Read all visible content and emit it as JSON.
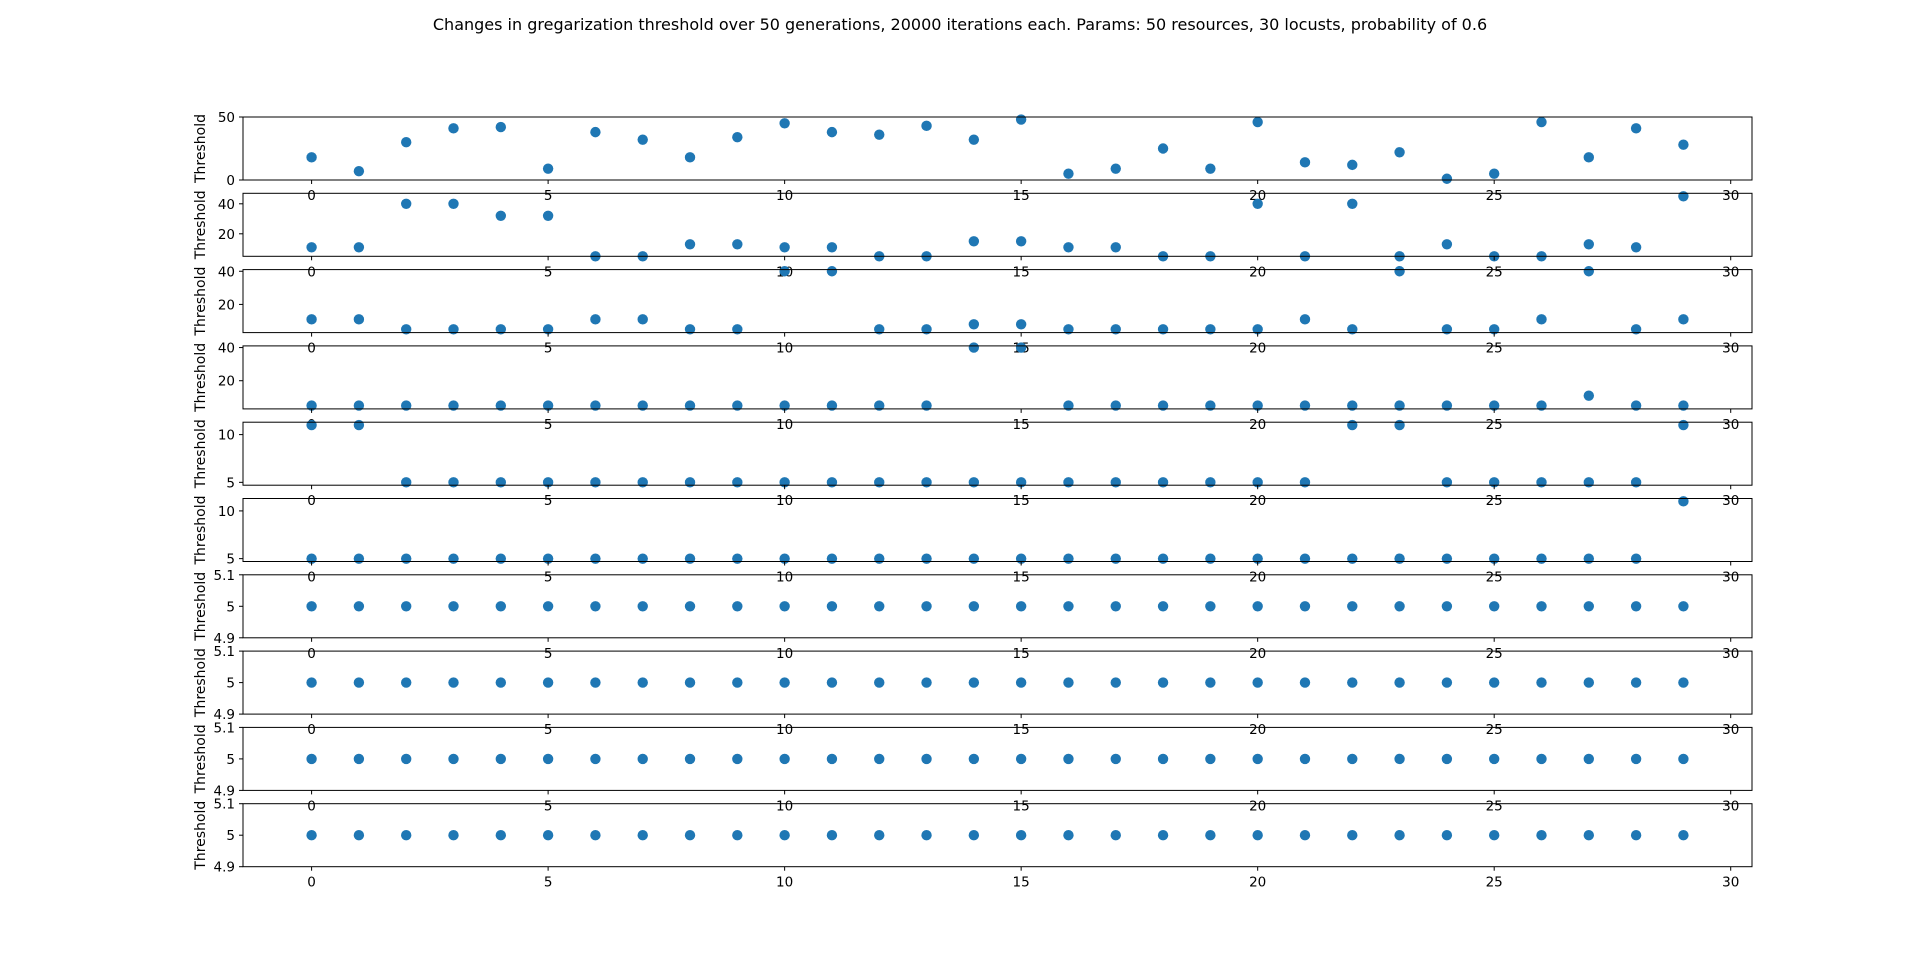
{
  "figure": {
    "title": "Changes in gregarization threshold over 50 generations, 20000 iterations each. Params: 50 resources, 30 locusts, probability of 0.6"
  },
  "chart_data": [
    {
      "type": "scatter",
      "ylabel": "Threshold",
      "xlim": [
        -1.45,
        30.45
      ],
      "ylim": [
        0,
        50
      ],
      "yticks": [
        0,
        50
      ],
      "xticks": [
        0,
        5,
        10,
        15,
        20,
        25,
        30
      ],
      "x": [
        0,
        1,
        2,
        3,
        4,
        5,
        6,
        7,
        8,
        9,
        10,
        11,
        12,
        13,
        14,
        15,
        16,
        17,
        18,
        19,
        20,
        21,
        22,
        23,
        24,
        25,
        26,
        27,
        28,
        29
      ],
      "y": [
        18,
        7,
        30,
        41,
        42,
        9,
        38,
        32,
        18,
        34,
        45,
        38,
        36,
        43,
        32,
        48,
        5,
        9,
        25,
        9,
        46,
        14,
        12,
        22,
        1,
        5,
        46,
        18,
        41,
        28
      ],
      "color": "#1f77b4"
    },
    {
      "type": "scatter",
      "ylabel": "Threshold",
      "xlim": [
        -1.45,
        30.45
      ],
      "ylim": [
        5,
        47
      ],
      "yticks": [
        20,
        40
      ],
      "xticks": [
        0,
        5,
        10,
        15,
        20,
        25,
        30
      ],
      "x": [
        0,
        1,
        2,
        3,
        4,
        5,
        6,
        7,
        8,
        9,
        10,
        11,
        12,
        13,
        14,
        15,
        16,
        17,
        18,
        19,
        20,
        21,
        22,
        23,
        24,
        25,
        26,
        27,
        28,
        29
      ],
      "y": [
        11,
        11,
        40,
        40,
        32,
        32,
        5,
        5,
        13,
        13,
        11,
        11,
        5,
        5,
        15,
        15,
        11,
        11,
        5,
        5,
        40,
        5,
        40,
        5,
        13,
        5,
        5,
        13,
        11,
        45
      ],
      "color": "#1f77b4"
    },
    {
      "type": "scatter",
      "ylabel": "Threshold",
      "xlim": [
        -1.45,
        30.45
      ],
      "ylim": [
        3,
        41
      ],
      "yticks": [
        20,
        40
      ],
      "xticks": [
        0,
        5,
        10,
        15,
        20,
        25,
        30
      ],
      "x": [
        0,
        1,
        2,
        3,
        4,
        5,
        6,
        7,
        8,
        9,
        10,
        11,
        12,
        13,
        14,
        15,
        16,
        17,
        18,
        19,
        20,
        21,
        22,
        23,
        24,
        25,
        26,
        27,
        28,
        29
      ],
      "y": [
        11,
        11,
        5,
        5,
        5,
        5,
        11,
        11,
        5,
        5,
        40,
        40,
        5,
        5,
        8,
        8,
        5,
        5,
        5,
        5,
        5,
        11,
        5,
        40,
        5,
        5,
        11,
        40,
        5,
        11
      ],
      "color": "#1f77b4"
    },
    {
      "type": "scatter",
      "ylabel": "Threshold",
      "xlim": [
        -1.45,
        30.45
      ],
      "ylim": [
        3,
        41
      ],
      "yticks": [
        20,
        40
      ],
      "xticks": [
        0,
        5,
        10,
        15,
        20,
        25,
        30
      ],
      "x": [
        0,
        1,
        2,
        3,
        4,
        5,
        6,
        7,
        8,
        9,
        10,
        11,
        12,
        13,
        14,
        15,
        16,
        17,
        18,
        19,
        20,
        21,
        22,
        23,
        24,
        25,
        26,
        27,
        28,
        29
      ],
      "y": [
        5,
        5,
        5,
        5,
        5,
        5,
        5,
        5,
        5,
        5,
        5,
        5,
        5,
        5,
        40,
        40,
        5,
        5,
        5,
        5,
        5,
        5,
        5,
        5,
        5,
        5,
        5,
        11,
        5,
        5
      ],
      "color": "#1f77b4"
    },
    {
      "type": "scatter",
      "ylabel": "Threshold",
      "xlim": [
        -1.45,
        30.45
      ],
      "ylim": [
        4.7,
        11.3
      ],
      "yticks": [
        5,
        10
      ],
      "xticks": [
        0,
        5,
        10,
        15,
        20,
        25,
        30
      ],
      "x": [
        0,
        1,
        2,
        3,
        4,
        5,
        6,
        7,
        8,
        9,
        10,
        11,
        12,
        13,
        14,
        15,
        16,
        17,
        18,
        19,
        20,
        21,
        22,
        23,
        24,
        25,
        26,
        27,
        28,
        29
      ],
      "y": [
        11,
        11,
        5,
        5,
        5,
        5,
        5,
        5,
        5,
        5,
        5,
        5,
        5,
        5,
        5,
        5,
        5,
        5,
        5,
        5,
        5,
        5,
        11,
        11,
        5,
        5,
        5,
        5,
        5,
        11
      ],
      "color": "#1f77b4"
    },
    {
      "type": "scatter",
      "ylabel": "Threshold",
      "xlim": [
        -1.45,
        30.45
      ],
      "ylim": [
        4.7,
        11.3
      ],
      "yticks": [
        5,
        10
      ],
      "xticks": [
        0,
        5,
        10,
        15,
        20,
        25,
        30
      ],
      "x": [
        0,
        1,
        2,
        3,
        4,
        5,
        6,
        7,
        8,
        9,
        10,
        11,
        12,
        13,
        14,
        15,
        16,
        17,
        18,
        19,
        20,
        21,
        22,
        23,
        24,
        25,
        26,
        27,
        28,
        29
      ],
      "y": [
        5,
        5,
        5,
        5,
        5,
        5,
        5,
        5,
        5,
        5,
        5,
        5,
        5,
        5,
        5,
        5,
        5,
        5,
        5,
        5,
        5,
        5,
        5,
        5,
        5,
        5,
        5,
        5,
        5,
        11
      ],
      "color": "#1f77b4"
    },
    {
      "type": "scatter",
      "ylabel": "Threshold",
      "xlim": [
        -1.45,
        30.45
      ],
      "ylim": [
        4.9,
        5.1
      ],
      "yticks": [
        4.9,
        5.0,
        5.1
      ],
      "xticks": [
        0,
        5,
        10,
        15,
        20,
        25,
        30
      ],
      "x": [
        0,
        1,
        2,
        3,
        4,
        5,
        6,
        7,
        8,
        9,
        10,
        11,
        12,
        13,
        14,
        15,
        16,
        17,
        18,
        19,
        20,
        21,
        22,
        23,
        24,
        25,
        26,
        27,
        28,
        29
      ],
      "y": [
        5,
        5,
        5,
        5,
        5,
        5,
        5,
        5,
        5,
        5,
        5,
        5,
        5,
        5,
        5,
        5,
        5,
        5,
        5,
        5,
        5,
        5,
        5,
        5,
        5,
        5,
        5,
        5,
        5,
        5
      ],
      "color": "#1f77b4"
    },
    {
      "type": "scatter",
      "ylabel": "Threshold",
      "xlim": [
        -1.45,
        30.45
      ],
      "ylim": [
        4.9,
        5.1
      ],
      "yticks": [
        4.9,
        5.0,
        5.1
      ],
      "xticks": [
        0,
        5,
        10,
        15,
        20,
        25,
        30
      ],
      "x": [
        0,
        1,
        2,
        3,
        4,
        5,
        6,
        7,
        8,
        9,
        10,
        11,
        12,
        13,
        14,
        15,
        16,
        17,
        18,
        19,
        20,
        21,
        22,
        23,
        24,
        25,
        26,
        27,
        28,
        29
      ],
      "y": [
        5,
        5,
        5,
        5,
        5,
        5,
        5,
        5,
        5,
        5,
        5,
        5,
        5,
        5,
        5,
        5,
        5,
        5,
        5,
        5,
        5,
        5,
        5,
        5,
        5,
        5,
        5,
        5,
        5,
        5
      ],
      "color": "#1f77b4"
    },
    {
      "type": "scatter",
      "ylabel": "Threshold",
      "xlim": [
        -1.45,
        30.45
      ],
      "ylim": [
        4.9,
        5.1
      ],
      "yticks": [
        4.9,
        5.0,
        5.1
      ],
      "xticks": [
        0,
        5,
        10,
        15,
        20,
        25,
        30
      ],
      "x": [
        0,
        1,
        2,
        3,
        4,
        5,
        6,
        7,
        8,
        9,
        10,
        11,
        12,
        13,
        14,
        15,
        16,
        17,
        18,
        19,
        20,
        21,
        22,
        23,
        24,
        25,
        26,
        27,
        28,
        29
      ],
      "y": [
        5,
        5,
        5,
        5,
        5,
        5,
        5,
        5,
        5,
        5,
        5,
        5,
        5,
        5,
        5,
        5,
        5,
        5,
        5,
        5,
        5,
        5,
        5,
        5,
        5,
        5,
        5,
        5,
        5,
        5
      ],
      "color": "#1f77b4"
    },
    {
      "type": "scatter",
      "ylabel": "Threshold",
      "xlim": [
        -1.45,
        30.45
      ],
      "ylim": [
        4.9,
        5.1
      ],
      "yticks": [
        4.9,
        5.0,
        5.1
      ],
      "xticks": [
        0,
        5,
        10,
        15,
        20,
        25,
        30
      ],
      "x": [
        0,
        1,
        2,
        3,
        4,
        5,
        6,
        7,
        8,
        9,
        10,
        11,
        12,
        13,
        14,
        15,
        16,
        17,
        18,
        19,
        20,
        21,
        22,
        23,
        24,
        25,
        26,
        27,
        28,
        29
      ],
      "y": [
        5,
        5,
        5,
        5,
        5,
        5,
        5,
        5,
        5,
        5,
        5,
        5,
        5,
        5,
        5,
        5,
        5,
        5,
        5,
        5,
        5,
        5,
        5,
        5,
        5,
        5,
        5,
        5,
        5,
        5
      ],
      "color": "#1f77b4"
    }
  ]
}
